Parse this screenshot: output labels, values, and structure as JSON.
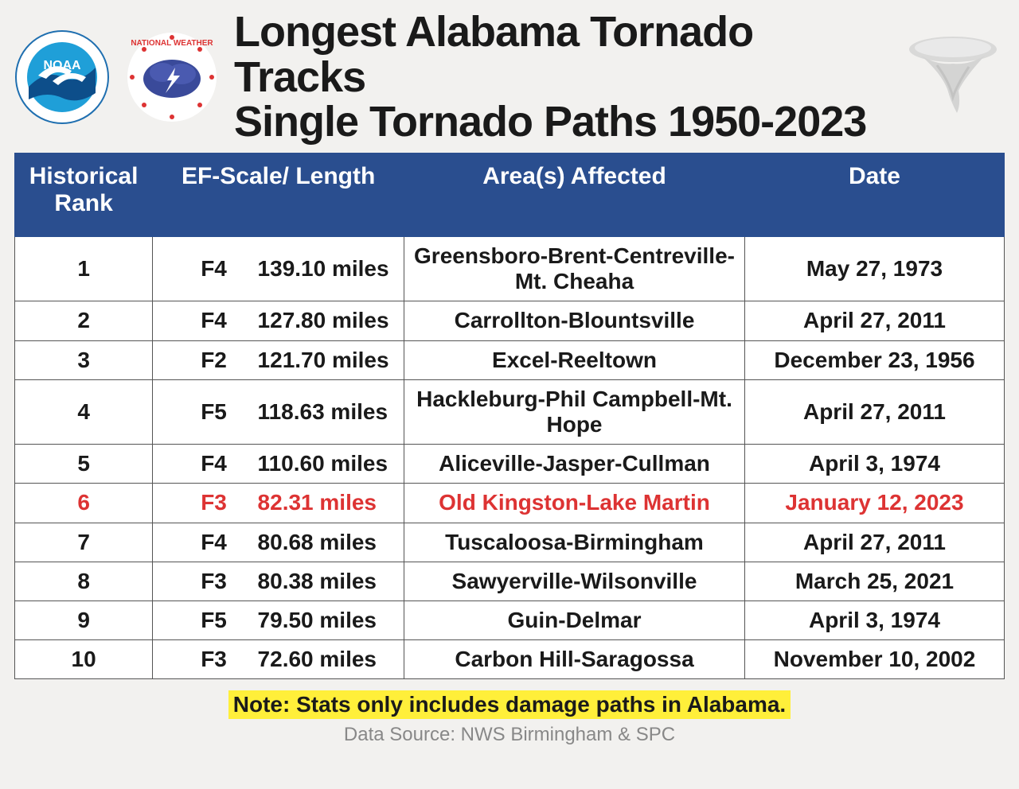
{
  "title_line1": "Longest Alabama Tornado Tracks",
  "title_line2": "Single Tornado Paths 1950-2023",
  "columns": [
    "Historical Rank",
    "EF-Scale/ Length",
    "Area(s) Affected",
    "Date"
  ],
  "rows": [
    {
      "rank": "1",
      "scale": "F4",
      "length": "139.10 miles",
      "area": "Greensboro-Brent-Centreville-Mt. Cheaha",
      "date": "May 27, 1973",
      "highlight": false
    },
    {
      "rank": "2",
      "scale": "F4",
      "length": "127.80 miles",
      "area": "Carrollton-Blountsville",
      "date": "April 27, 2011",
      "highlight": false
    },
    {
      "rank": "3",
      "scale": "F2",
      "length": "121.70 miles",
      "area": "Excel-Reeltown",
      "date": "December 23, 1956",
      "highlight": false
    },
    {
      "rank": "4",
      "scale": "F5",
      "length": "118.63 miles",
      "area": "Hackleburg-Phil Campbell-Mt. Hope",
      "date": "April 27, 2011",
      "highlight": false
    },
    {
      "rank": "5",
      "scale": "F4",
      "length": "110.60 miles",
      "area": "Aliceville-Jasper-Cullman",
      "date": "April 3, 1974",
      "highlight": false
    },
    {
      "rank": "6",
      "scale": "F3",
      "length": "82.31 miles",
      "area": "Old Kingston-Lake Martin",
      "date": "January 12, 2023",
      "highlight": true
    },
    {
      "rank": "7",
      "scale": "F4",
      "length": "80.68 miles",
      "area": "Tuscaloosa-Birmingham",
      "date": "April 27, 2011",
      "highlight": false
    },
    {
      "rank": "8",
      "scale": "F3",
      "length": "80.38 miles",
      "area": "Sawyerville-Wilsonville",
      "date": "March 25, 2021",
      "highlight": false
    },
    {
      "rank": "9",
      "scale": "F5",
      "length": "79.50 miles",
      "area": "Guin-Delmar",
      "date": "April 3, 1974",
      "highlight": false
    },
    {
      "rank": "10",
      "scale": "F3",
      "length": "72.60 miles",
      "area": "Carbon Hill-Saragossa",
      "date": "November 10, 2002",
      "highlight": false
    }
  ],
  "note": "Note: Stats only includes damage paths in Alabama.",
  "source": "Data Source: NWS Birmingham & SPC",
  "colors": {
    "header_bg": "#2a4e8f",
    "header_fg": "#ffffff",
    "row_border": "#555555",
    "highlight_text": "#d33",
    "note_bg": "#ffef3a",
    "page_bg": "#f2f1ef",
    "source_color": "#888888"
  }
}
